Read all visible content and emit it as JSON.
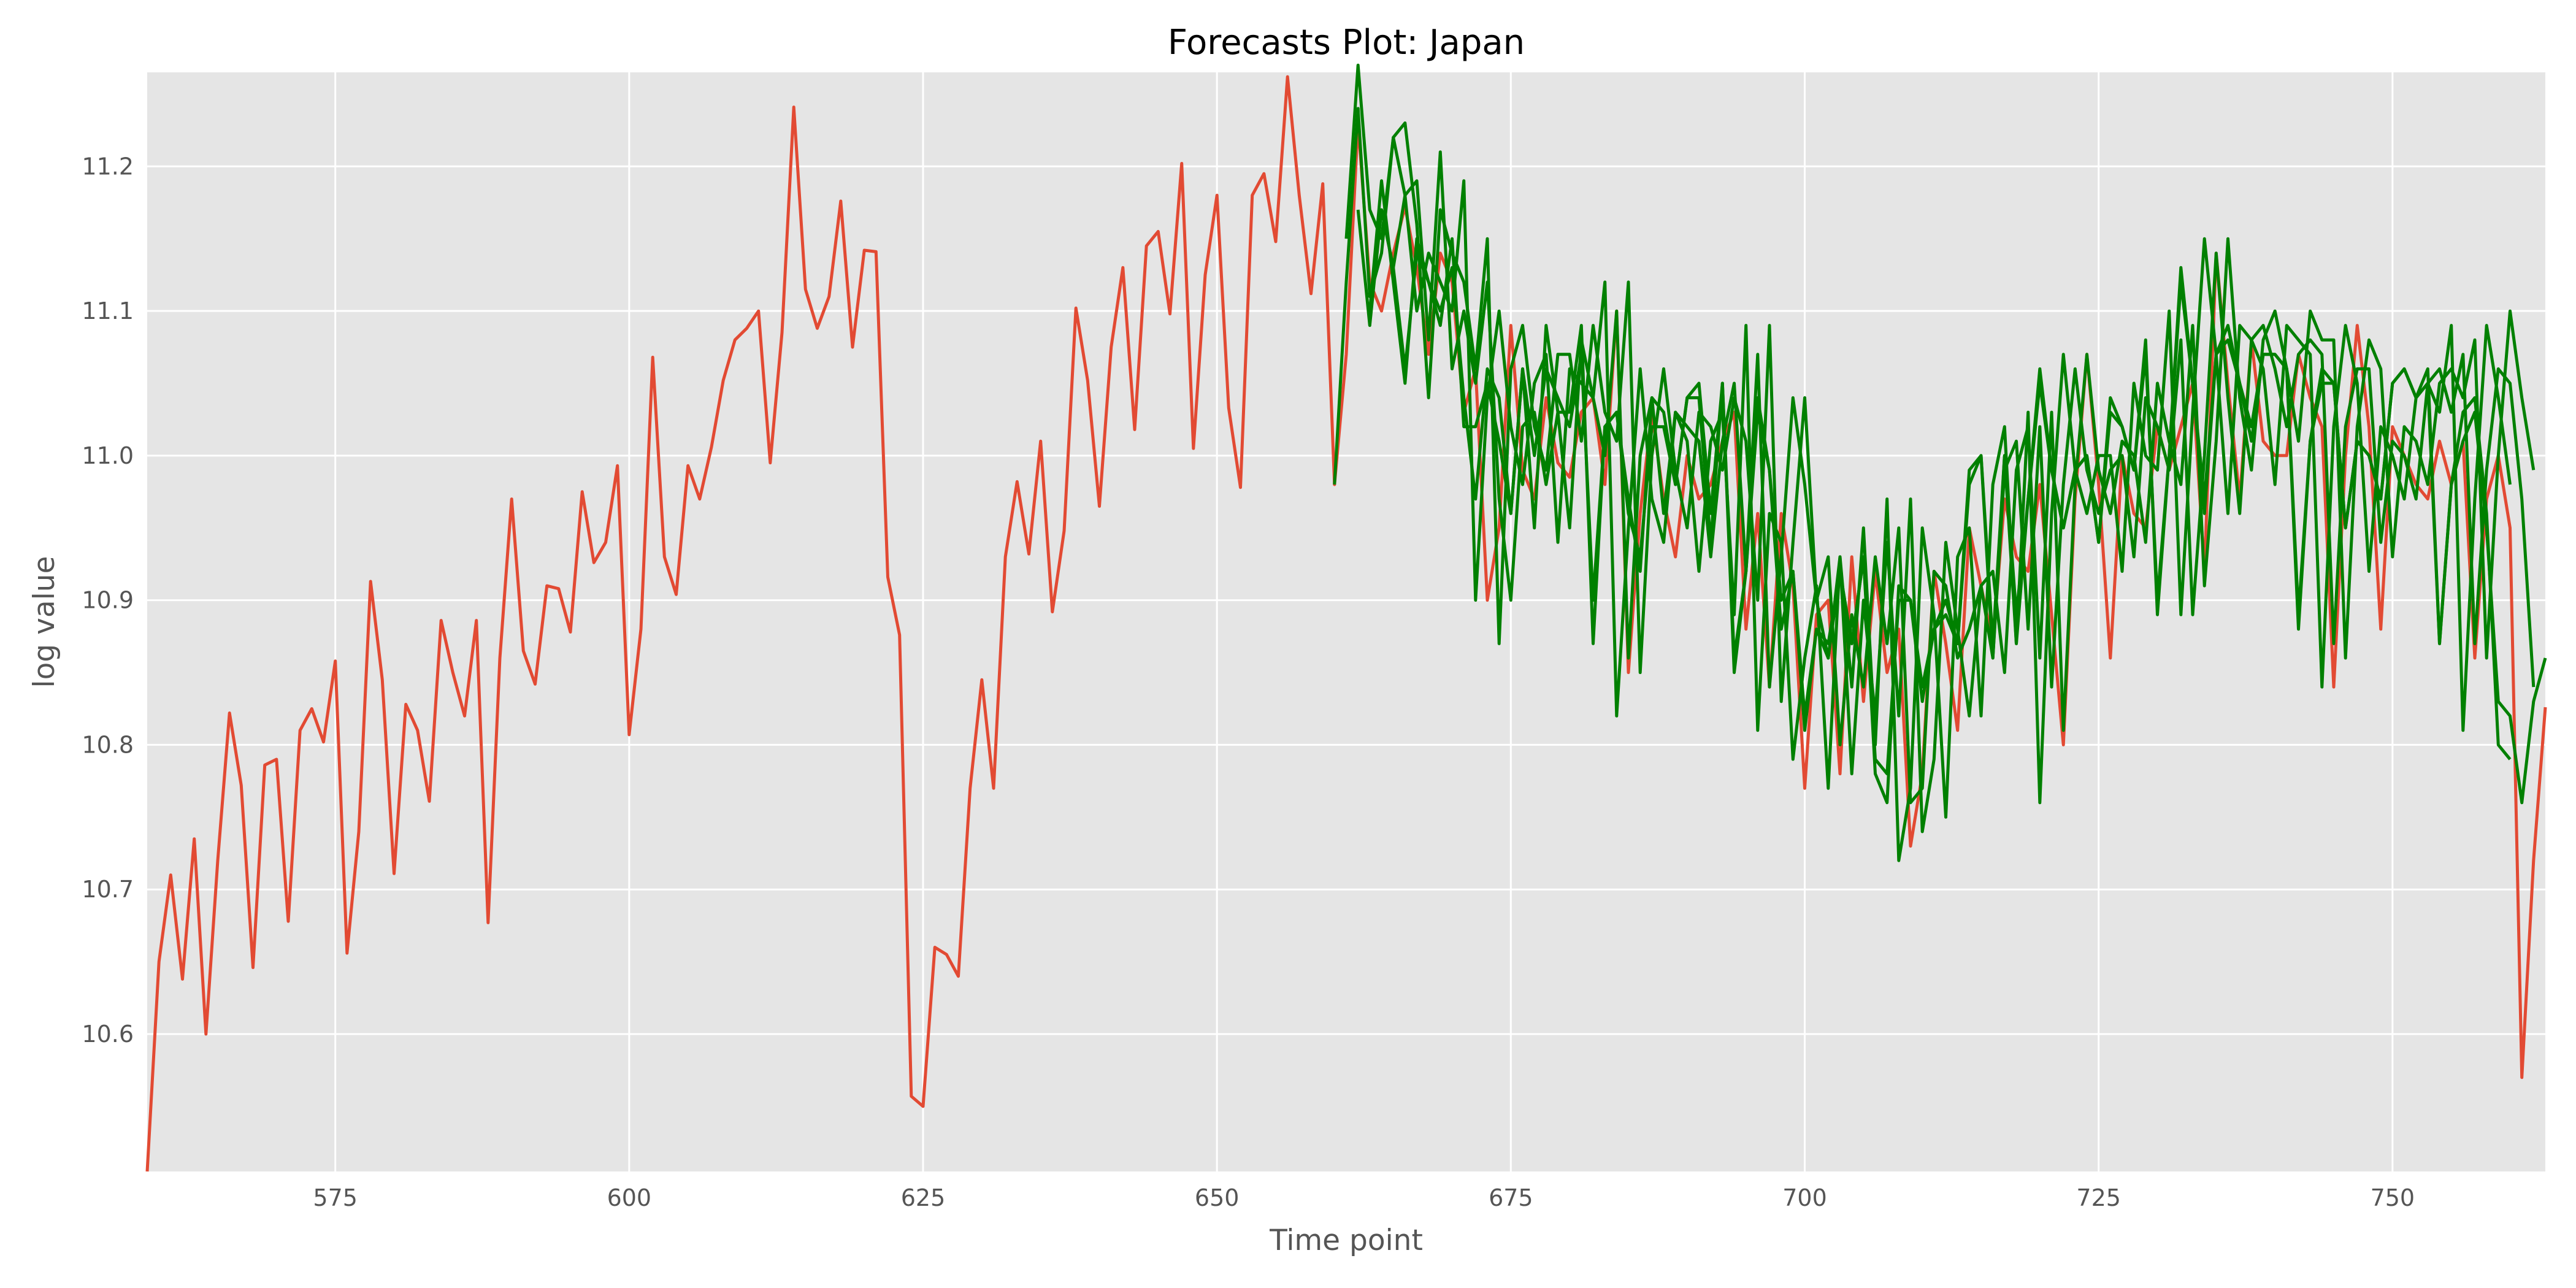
{
  "chart_data": {
    "type": "line",
    "title": "Forecasts Plot: Japan",
    "xlabel": "Time point",
    "ylabel": "log value",
    "xlim": [
      559,
      763
    ],
    "ylim": [
      10.505,
      11.265
    ],
    "xticks": [
      575,
      600,
      625,
      650,
      675,
      700,
      725,
      750
    ],
    "yticks": [
      10.6,
      10.7,
      10.8,
      10.9,
      11.0,
      11.1,
      11.2
    ],
    "grid": true,
    "colors": {
      "background": "#E5E5E5",
      "grid": "#FFFFFF",
      "actual": "#E24A33",
      "forecast": "#008000"
    },
    "actual": {
      "x_start": 559,
      "values": [
        10.505,
        10.65,
        10.71,
        10.638,
        10.735,
        10.6,
        10.72,
        10.822,
        10.772,
        10.646,
        10.786,
        10.79,
        10.678,
        10.81,
        10.825,
        10.802,
        10.858,
        10.656,
        10.74,
        10.913,
        10.845,
        10.711,
        10.828,
        10.81,
        10.761,
        10.886,
        10.85,
        10.82,
        10.886,
        10.677,
        10.86,
        10.97,
        10.865,
        10.842,
        10.91,
        10.908,
        10.878,
        10.975,
        10.926,
        10.94,
        10.993,
        10.807,
        10.88,
        11.068,
        10.93,
        10.904,
        10.993,
        10.97,
        11.006,
        11.052,
        11.08,
        11.088,
        11.1,
        10.995,
        11.085,
        11.241,
        11.115,
        11.088,
        11.11,
        11.176,
        11.075,
        11.142,
        11.141,
        10.916,
        10.876,
        10.557,
        10.55,
        10.66,
        10.655,
        10.64,
        10.77,
        10.845,
        10.77,
        10.93,
        10.982,
        10.932,
        11.01,
        10.892,
        10.948,
        11.102,
        11.052,
        10.965,
        11.075,
        11.13,
        11.018,
        11.145,
        11.155,
        11.098,
        11.202,
        11.005,
        11.125,
        11.18,
        11.033,
        10.978,
        11.18,
        11.195,
        11.148,
        11.262,
        11.18,
        11.112,
        11.188,
        10.98,
        11.07,
        11.23,
        11.12,
        11.1,
        11.14,
        11.172,
        11.13,
        11.07,
        11.14,
        11.12,
        11.03,
        11.06,
        10.9,
        10.95,
        11.09,
        10.99,
        10.97,
        11.04,
        10.995,
        10.985,
        11.03,
        11.04,
        10.98,
        11.1,
        10.85,
        10.96,
        11.03,
        10.97,
        10.93,
        11.0,
        10.97,
        10.98,
        11.01,
        11.03,
        10.88,
        10.96,
        10.84,
        10.96,
        10.91,
        10.77,
        10.89,
        10.9,
        10.78,
        10.93,
        10.83,
        10.92,
        10.85,
        10.88,
        10.73,
        10.78,
        10.92,
        10.87,
        10.81,
        10.95,
        10.91,
        10.87,
        10.97,
        10.93,
        10.92,
        10.98,
        10.89,
        10.8,
        10.97,
        11.07,
        10.98,
        10.86,
        11.0,
        10.96,
        10.95,
        11.02,
        10.99,
        11.02,
        11.05,
        10.92,
        11.14,
        11.05,
        10.97,
        11.08,
        11.01,
        11.0,
        11.0,
        11.07,
        11.04,
        11.02,
        10.84,
        11.0,
        11.09,
        11.02,
        10.88,
        11.02,
        11.0,
        10.98,
        10.97,
        11.01,
        10.98,
        11.01,
        10.86,
        10.97,
        11.0,
        10.95,
        10.57,
        10.72,
        10.826
      ]
    },
    "forecasts": [
      {
        "x_start": 660,
        "values": [
          10.98,
          11.12,
          11.24,
          11.11,
          11.14,
          11.22,
          11.18,
          11.1,
          11.14,
          11.12,
          11.1,
          11.19,
          10.9,
          11.04,
          11.1,
          11.02,
          10.98,
          11.05,
          11.07,
          10.94,
          11.06,
          11.05,
          11.04,
          11.12,
          10.82,
          10.95,
          11.06,
          10.97,
          10.94,
          11.03,
          11.01,
          10.92,
          11.01,
          11.03,
          10.89,
          11.09,
          10.81,
          10.96,
          10.94,
          10.79,
          10.86,
          10.91,
          10.77,
          10.93,
          10.84,
          10.95,
          10.8,
          10.97,
          10.72,
          10.77,
          10.95,
          10.89,
          10.75,
          10.93,
          10.95,
          10.82,
          10.98,
          11.02,
          10.87,
          11.03,
          10.76,
          10.96,
          11.07,
          10.99,
          10.96,
          11.0,
          11.0,
          10.92,
          11.05,
          11.0,
          10.99,
          11.1,
          10.89,
          11.03,
          11.15,
          11.07,
          10.96,
          11.09,
          11.08,
          11.06,
          10.98,
          11.09,
          11.08,
          11.07,
          10.84,
          11.02,
          11.09,
          11.05,
          10.92,
          11.02,
          11.0,
          10.97,
          11.04,
          11.05,
          11.03,
          11.09,
          10.81,
          10.97,
          11.09,
          11.04,
          10.98
        ]
      },
      {
        "x_start": 661,
        "values": [
          11.15,
          11.27,
          11.17,
          11.15,
          11.22,
          11.23,
          11.16,
          11.04,
          11.17,
          11.14,
          11.12,
          11.06,
          11.15,
          10.87,
          11.06,
          11.09,
          11.02,
          10.99,
          11.07,
          11.07,
          11.01,
          11.09,
          11.03,
          11.01,
          11.12,
          10.85,
          11.0,
          11.06,
          10.99,
          10.95,
          11.03,
          11.02,
          10.99,
          11.04,
          11.01,
          10.9,
          11.09,
          10.83,
          10.94,
          11.04,
          10.9,
          10.86,
          10.93,
          10.78,
          10.9,
          10.82,
          10.94,
          10.82,
          10.97,
          10.74,
          10.79,
          10.94,
          10.88,
          10.82,
          10.91,
          10.92,
          10.85,
          10.99,
          11.02,
          10.86,
          11.03,
          10.81,
          10.98,
          11.07,
          10.99,
          10.96,
          11.01,
          11.0,
          10.94,
          11.05,
          11.01,
          10.98,
          11.09,
          10.91,
          11.01,
          11.15,
          11.04,
          10.99,
          11.08,
          11.1,
          11.06,
          11.01,
          11.1,
          11.08,
          11.08,
          10.86,
          11.02,
          11.08,
          11.06,
          10.93,
          11.02,
          11.01,
          10.98,
          11.05,
          11.06,
          11.04,
          11.08,
          10.86,
          11.0,
          11.1,
          11.04,
          10.99
        ]
      },
      {
        "x_start": 662,
        "values": [
          11.17,
          11.09,
          11.17,
          11.13,
          11.18,
          11.19,
          11.08,
          11.21,
          11.06,
          11.1,
          11.05,
          11.12,
          10.97,
          10.9,
          11.02,
          11.03,
          10.98,
          11.03,
          10.95,
          11.08,
          11.04,
          11.0,
          11.1,
          10.86,
          11.0,
          11.04,
          10.96,
          11.03,
          11.02,
          11.01,
          10.93,
          11.01,
          11.05,
          10.92,
          11.07,
          10.84,
          10.93,
          11.04,
          10.98,
          10.9,
          10.93,
          10.8,
          10.89,
          10.84,
          10.93,
          10.87,
          10.95,
          10.76,
          10.77,
          10.92,
          10.91,
          10.86,
          10.88,
          10.91,
          10.86,
          10.99,
          11.01,
          10.88,
          11.02,
          10.84,
          10.98,
          11.06,
          10.99,
          10.96,
          10.99,
          11.0,
          10.93,
          11.04,
          11.02,
          10.99,
          11.08,
          10.89,
          11.0,
          11.14,
          11.04,
          10.96,
          11.08,
          11.09,
          11.06,
          11.02,
          11.07,
          11.08,
          11.07,
          10.87,
          11.02,
          11.06,
          11.06,
          10.94,
          11.01,
          11.0,
          10.97,
          11.05,
          11.06,
          11.03,
          11.07,
          10.87,
          10.99,
          11.06,
          11.05,
          10.97,
          10.84
        ]
      },
      {
        "x_start": 663,
        "values": [
          11.1,
          11.19,
          11.12,
          11.05,
          11.15,
          11.12,
          11.09,
          11.15,
          11.02,
          11.02,
          11.05,
          11.01,
          10.96,
          11.06,
          10.95,
          11.09,
          11.03,
          11.03,
          11.09,
          10.87,
          11.02,
          11.03,
          10.97,
          10.92,
          11.04,
          11.03,
          10.98,
          11.04,
          11.04,
          10.94,
          11.05,
          10.85,
          10.92,
          11.04,
          10.99,
          10.88,
          10.92,
          10.81,
          10.88,
          10.87,
          10.92,
          10.87,
          10.93,
          10.78,
          10.76,
          10.91,
          10.9,
          10.83,
          10.88,
          10.9,
          10.87,
          10.99,
          11.0,
          10.86,
          11.0,
          10.87,
          10.97,
          11.06,
          10.99,
          10.95,
          10.99,
          11.0,
          10.94,
          11.04,
          11.02,
          10.99,
          11.08,
          10.89,
          11.0,
          11.13,
          11.05,
          10.96,
          11.07,
          11.09,
          11.05,
          11.01,
          11.07,
          11.07,
          11.06,
          10.88,
          11.01,
          11.06,
          11.05,
          10.95,
          11.01,
          11.0,
          10.97,
          11.05,
          11.06,
          11.04,
          11.06,
          10.87,
          10.98,
          11.03,
          11.04,
          10.96,
          10.8,
          10.79
        ]
      },
      {
        "x_start": 664,
        "values": [
          11.17,
          11.13,
          11.06,
          11.14,
          11.12,
          11.1,
          11.13,
          11.04,
          10.97,
          11.06,
          11.04,
          10.96,
          11.06,
          11.0,
          11.06,
          11.04,
          11.02,
          11.07,
          10.9,
          11.02,
          11.03,
          10.96,
          10.93,
          11.02,
          11.02,
          10.98,
          11.04,
          11.05,
          10.96,
          11.05,
          10.86,
          10.92,
          11.03,
          10.99,
          10.9,
          10.92,
          10.82,
          10.88,
          10.86,
          10.92,
          10.87,
          10.93,
          10.79,
          10.78,
          10.9,
          10.9,
          10.84,
          10.88,
          10.89,
          10.87,
          10.98,
          11.0,
          10.87,
          11.0,
          10.89,
          10.97,
          11.05,
          10.99,
          10.95,
          10.99,
          11.0,
          10.94,
          11.03,
          11.02,
          10.99,
          11.07,
          10.9,
          11.0,
          11.12,
          11.05,
          10.97,
          11.07,
          11.08,
          11.05,
          11.02,
          11.07,
          11.07,
          11.06,
          10.89,
          11.01,
          11.05,
          11.05,
          10.95,
          11.01,
          11.0,
          10.97,
          11.05,
          11.06,
          11.04,
          11.05,
          10.87,
          10.98,
          11.01,
          11.03,
          10.95,
          10.83,
          10.82,
          10.76,
          10.83,
          10.86
        ]
      }
    ]
  }
}
